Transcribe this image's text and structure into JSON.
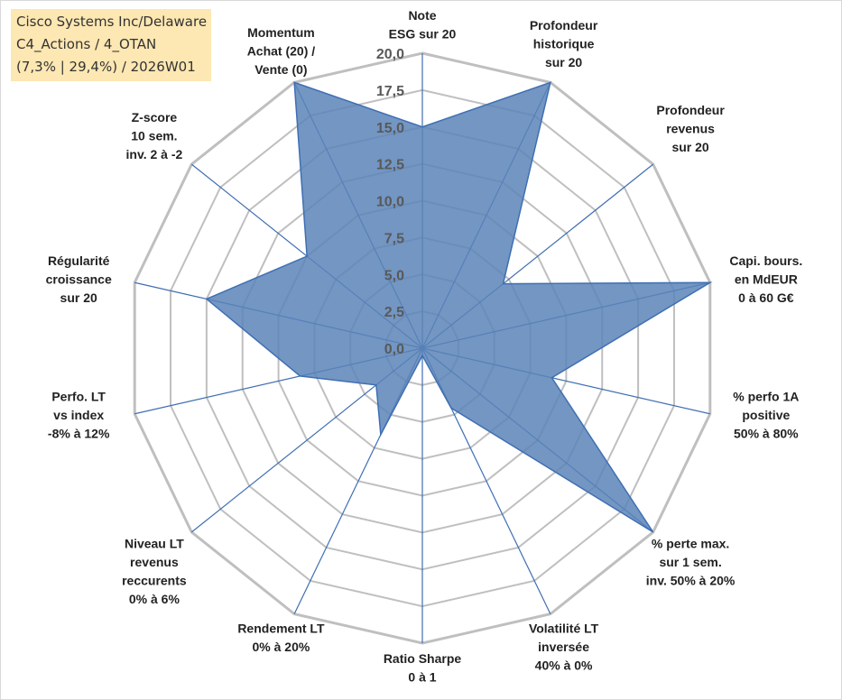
{
  "title_box": {
    "line1": "Cisco Systems Inc/Delaware",
    "line2": "C4_Actions / 4_OTAN",
    "line3": "(7,3% | 29,4%) / 2026W01"
  },
  "colors": {
    "fill": "#5b84b8",
    "stroke": "#3f6fb3",
    "grid": "#bfbfbf",
    "title_bg": "#fde7b2"
  },
  "chart_data": {
    "type": "radar",
    "title": "",
    "rmin": 0,
    "rmax": 20,
    "tick_step": 2.5,
    "tick_labels": [
      "0,0",
      "2,5",
      "5,0",
      "7,5",
      "10,0",
      "12,5",
      "15,0",
      "17,5",
      "20,0"
    ],
    "axes": [
      {
        "label": [
          "Note",
          "ESG sur 20"
        ],
        "value": 15.0
      },
      {
        "label": [
          "Profondeur",
          "historique",
          "sur 20"
        ],
        "value": 20.0
      },
      {
        "label": [
          "Profondeur",
          "revenus",
          "sur 20"
        ],
        "value": 7.0
      },
      {
        "label": [
          "Capi. bours.",
          "en MdEUR",
          "0 à 60 G€"
        ],
        "value": 20.0
      },
      {
        "label": [
          "% perfo 1A",
          "positive",
          "50% à 80%"
        ],
        "value": 9.0
      },
      {
        "label": [
          "% perte max.",
          "sur 1 sem.",
          "inv. 50% à 20%"
        ],
        "value": 20.0
      },
      {
        "label": [
          "Volatilité LT",
          "inversée",
          "40% à 0%"
        ],
        "value": 4.5
      },
      {
        "label": [
          "Ratio Sharpe",
          "0 à 1"
        ],
        "value": 0.5
      },
      {
        "label": [
          "Rendement LT",
          "0% à 20%"
        ],
        "value": 6.5
      },
      {
        "label": [
          "Niveau LT",
          "revenus",
          "reccurents",
          "0% à 6%"
        ],
        "value": 4.0
      },
      {
        "label": [
          "Perfo. LT",
          "vs index",
          "-8% à 12%"
        ],
        "value": 8.5
      },
      {
        "label": [
          "Régularité",
          "croissance",
          "sur 20"
        ],
        "value": 15.0
      },
      {
        "label": [
          "Z-score",
          "10 sem.",
          "inv. 2 à -2"
        ],
        "value": 10.0
      },
      {
        "label": [
          "Momentum",
          "Achat (20) /",
          "Vente (0)"
        ],
        "value": 20.0
      }
    ]
  }
}
